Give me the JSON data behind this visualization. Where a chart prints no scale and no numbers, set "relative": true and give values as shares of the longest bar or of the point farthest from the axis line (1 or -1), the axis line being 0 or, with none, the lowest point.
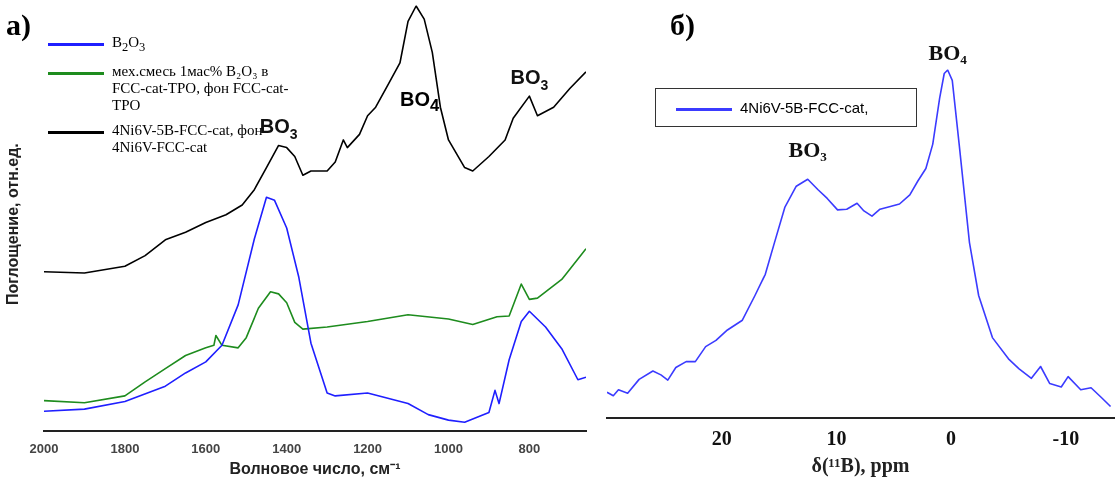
{
  "chart_data": [
    {
      "type": "line",
      "relative": true,
      "xlabel": "Волновое число, см⁻¹",
      "ylabel": "Поглощение, отн.ед.",
      "xlim": [
        2000,
        660
      ],
      "xticks": [
        2000,
        1800,
        1600,
        1400,
        1200,
        1000,
        800
      ],
      "grid": false,
      "legend": "top left",
      "annotations": [
        "а)",
        {
          "text": "BO$_{3}$",
          "x": 1420,
          "y": 0.672
        },
        "BO$_{4}$",
        {
          "text": "BO$_{3}$",
          "x": 800,
          "y": 0.788
        }
      ],
      "series": [
        {
          "name": "B$_{2}$O$_{3}$",
          "color": "#1f1fff",
          "x": [
            2000,
            1900,
            1800,
            1700,
            1650,
            1600,
            1560,
            1520,
            1480,
            1450,
            1430,
            1400,
            1370,
            1340,
            1300,
            1280,
            1200,
            1100,
            1050,
            1000,
            960,
            900,
            885,
            875,
            850,
            820,
            800,
            760,
            720,
            680,
            660
          ],
          "values": [
            0.047,
            0.052,
            0.07,
            0.106,
            0.137,
            0.163,
            0.202,
            0.297,
            0.452,
            0.55,
            0.543,
            0.478,
            0.362,
            0.207,
            0.09,
            0.083,
            0.09,
            0.065,
            0.039,
            0.026,
            0.021,
            0.044,
            0.096,
            0.065,
            0.168,
            0.258,
            0.282,
            0.245,
            0.194,
            0.121,
            0.127
          ]
        },
        {
          "name": "мех.смесь 1мас% B₂O₃ в FCC-cat-TPO, фон FCC-cat-TPO",
          "color": "#1e8c1e",
          "x": [
            2000,
            1900,
            1800,
            1750,
            1700,
            1650,
            1600,
            1580,
            1575,
            1560,
            1520,
            1500,
            1470,
            1440,
            1420,
            1400,
            1380,
            1360,
            1300,
            1200,
            1100,
            1000,
            940,
            880,
            850,
            820,
            800,
            780,
            720,
            660
          ],
          "values": [
            0.072,
            0.067,
            0.083,
            0.116,
            0.147,
            0.178,
            0.196,
            0.202,
            0.225,
            0.202,
            0.196,
            0.22,
            0.289,
            0.328,
            0.323,
            0.302,
            0.256,
            0.24,
            0.245,
            0.258,
            0.274,
            0.264,
            0.251,
            0.269,
            0.271,
            0.346,
            0.31,
            0.313,
            0.357,
            0.429
          ]
        },
        {
          "name": "4Ni6V-5B-FCC-cat, фон 4Ni6V-FCC-cat",
          "color": "#000000",
          "x": [
            2000,
            1900,
            1800,
            1750,
            1700,
            1650,
            1600,
            1550,
            1510,
            1480,
            1450,
            1420,
            1400,
            1380,
            1360,
            1340,
            1300,
            1280,
            1260,
            1250,
            1220,
            1200,
            1180,
            1150,
            1120,
            1100,
            1080,
            1060,
            1040,
            1020,
            1000,
            960,
            940,
            900,
            860,
            840,
            800,
            780,
            740,
            700,
            660
          ],
          "values": [
            0.375,
            0.372,
            0.388,
            0.413,
            0.45,
            0.468,
            0.491,
            0.509,
            0.532,
            0.568,
            0.62,
            0.672,
            0.667,
            0.646,
            0.602,
            0.612,
            0.612,
            0.633,
            0.685,
            0.667,
            0.698,
            0.742,
            0.762,
            0.814,
            0.866,
            0.964,
            1.0,
            0.969,
            0.891,
            0.762,
            0.685,
            0.62,
            0.612,
            0.646,
            0.685,
            0.736,
            0.788,
            0.742,
            0.762,
            0.806,
            0.845
          ]
        }
      ]
    },
    {
      "type": "line",
      "relative": true,
      "xlabel": "δ(¹¹B), ppm",
      "xlim": [
        30,
        -14.2
      ],
      "xticks": [
        20,
        10,
        0,
        -10
      ],
      "grid": false,
      "legend": "top left",
      "annotations": [
        "б)",
        {
          "text": "BO₃",
          "x": 12.5,
          "y": 0.686
        },
        {
          "text": "BO₄",
          "x": 0.3,
          "y": 1.0
        }
      ],
      "series": [
        {
          "name": "4Ni6V-5B-FCC-cat,",
          "color": "#3b3bff",
          "x": [
            30.0,
            29.45,
            29.0,
            28.2,
            27.2,
            26.0,
            25.3,
            24.7,
            24.0,
            23.1,
            22.3,
            21.4,
            20.5,
            19.5,
            18.2,
            17.1,
            16.2,
            15.4,
            14.5,
            13.5,
            12.5,
            11.6,
            10.8,
            9.9,
            9.1,
            8.2,
            7.6,
            6.9,
            6.2,
            5.3,
            4.5,
            3.6,
            2.9,
            2.2,
            1.6,
            1.0,
            0.6,
            0.3,
            -0.1,
            -0.7,
            -1.6,
            -2.4,
            -3.6,
            -5.0,
            -5.9,
            -7.0,
            -7.8,
            -8.6,
            -9.6,
            -10.2,
            -11.3,
            -12.2,
            -13.1,
            -13.9
          ],
          "values": [
            0.074,
            0.064,
            0.081,
            0.071,
            0.111,
            0.135,
            0.124,
            0.109,
            0.145,
            0.162,
            0.162,
            0.205,
            0.223,
            0.253,
            0.281,
            0.352,
            0.413,
            0.504,
            0.605,
            0.666,
            0.686,
            0.656,
            0.631,
            0.598,
            0.6,
            0.617,
            0.595,
            0.58,
            0.6,
            0.608,
            0.615,
            0.641,
            0.681,
            0.717,
            0.787,
            0.919,
            0.99,
            1.0,
            0.97,
            0.787,
            0.504,
            0.352,
            0.231,
            0.17,
            0.142,
            0.114,
            0.148,
            0.099,
            0.089,
            0.119,
            0.081,
            0.087,
            0.059,
            0.033
          ]
        }
      ]
    }
  ]
}
